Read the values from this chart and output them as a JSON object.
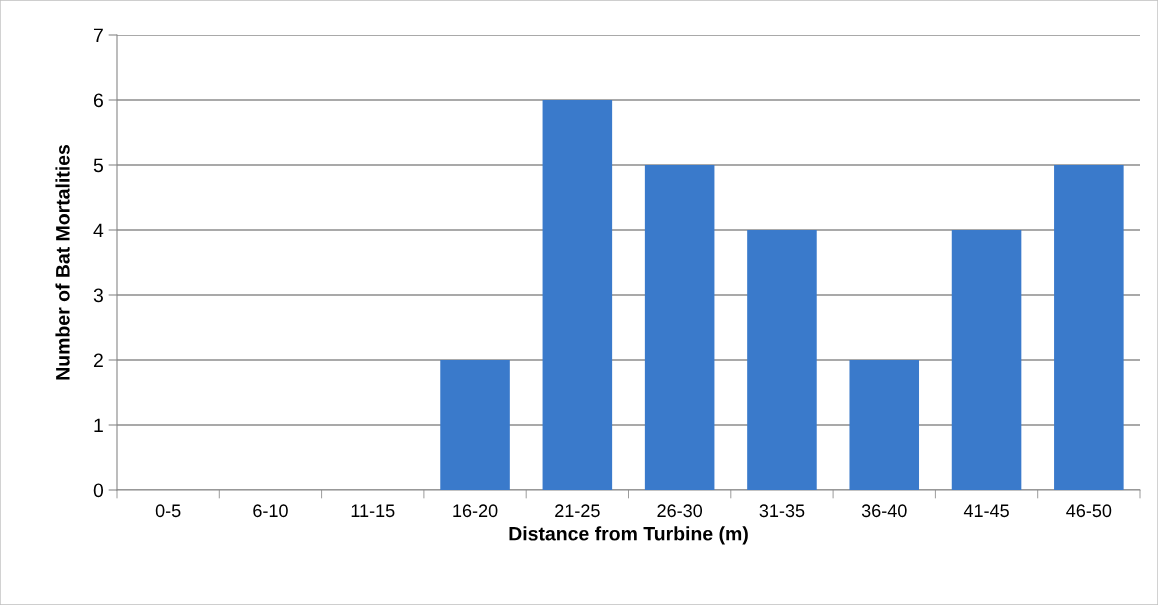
{
  "chart_data": {
    "type": "bar",
    "xlabel": "Distance from Turbine (m)",
    "ylabel": "Number of Bat Mortalities",
    "categories": [
      "0-5",
      "6-10",
      "11-15",
      "16-20",
      "21-25",
      "26-30",
      "31-35",
      "36-40",
      "41-45",
      "46-50"
    ],
    "values": [
      0,
      0,
      0,
      2,
      6,
      5,
      4,
      2,
      4,
      5
    ],
    "color": "#3a7acb",
    "ylim": [
      0,
      7
    ],
    "yticks": [
      0,
      1,
      2,
      3,
      4,
      5,
      6,
      7
    ],
    "grid": "y"
  }
}
